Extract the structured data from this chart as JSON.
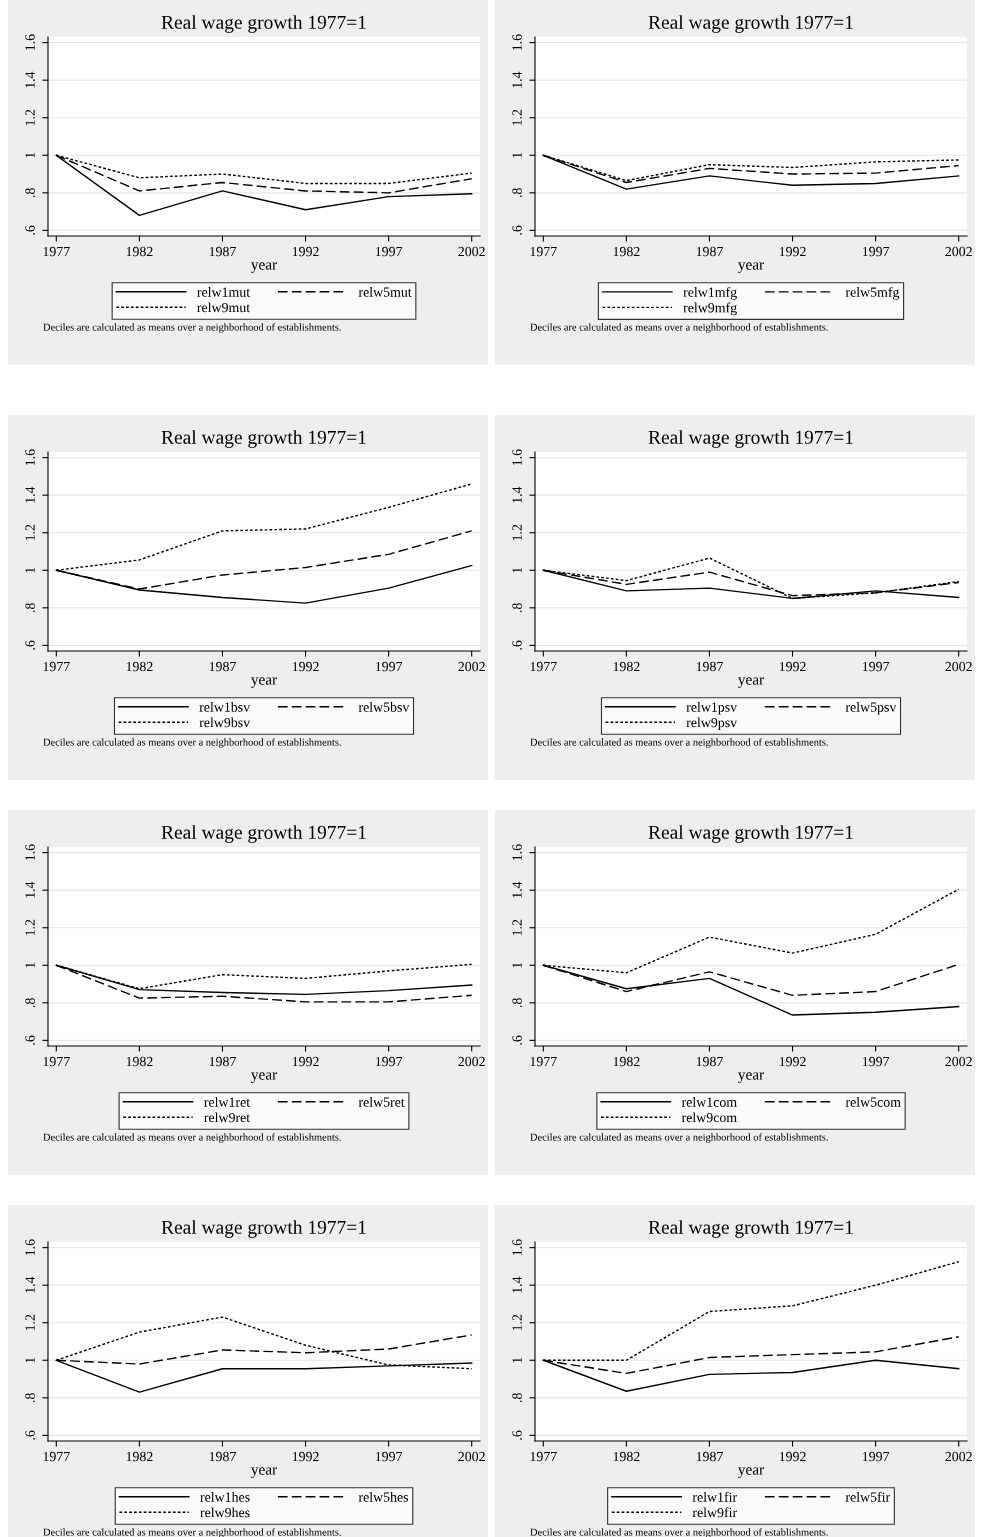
{
  "chart_data": [
    {
      "type": "line",
      "title": "Real wage growth 1977=1",
      "xlabel": "year",
      "x": [
        1977,
        1982,
        1987,
        1992,
        1997,
        2002
      ],
      "xlim": [
        1976.5,
        2002.5
      ],
      "xticks": [
        1977,
        1982,
        1987,
        1992,
        1997,
        2002
      ],
      "ylim": [
        0.57,
        1.63
      ],
      "yticks": [
        {
          "value": 0.6,
          "label": ".6"
        },
        {
          "value": 0.8,
          "label": ".8"
        },
        {
          "value": 1,
          "label": "1"
        },
        {
          "value": 1.2,
          "label": "1.2"
        },
        {
          "value": 1.4,
          "label": "1.4"
        },
        {
          "value": 1.6,
          "label": "1.6"
        }
      ],
      "grid": "y",
      "legend": "bottom",
      "annotations": [
        "Deciles are calculated as means over a neighborhood of establishments."
      ],
      "series": [
        {
          "name": "relw1mut",
          "color": "#000000",
          "line_style": "solid",
          "values": [
            1,
            0.68,
            0.81,
            0.71,
            0.78,
            0.795
          ]
        },
        {
          "name": "relw5mut",
          "color": "#000000",
          "line_style": "dashed",
          "values": [
            1,
            0.81,
            0.855,
            0.81,
            0.8,
            0.875
          ]
        },
        {
          "name": "relw9mut",
          "color": "#000000",
          "line_style": "dotted",
          "values": [
            1,
            0.88,
            0.9,
            0.85,
            0.85,
            0.905
          ]
        }
      ]
    },
    {
      "type": "line",
      "title": "Real wage growth 1977=1",
      "xlabel": "year",
      "x": [
        1977,
        1982,
        1987,
        1992,
        1997,
        2002
      ],
      "xlim": [
        1976.5,
        2002.5
      ],
      "xticks": [
        1977,
        1982,
        1987,
        1992,
        1997,
        2002
      ],
      "ylim": [
        0.57,
        1.63
      ],
      "yticks": [
        {
          "value": 0.6,
          "label": ".6"
        },
        {
          "value": 0.8,
          "label": ".8"
        },
        {
          "value": 1,
          "label": "1"
        },
        {
          "value": 1.2,
          "label": "1.2"
        },
        {
          "value": 1.4,
          "label": "1.4"
        },
        {
          "value": 1.6,
          "label": "1.6"
        }
      ],
      "grid": "y",
      "legend": "bottom",
      "annotations": [
        "Deciles are calculated as means over a neighborhood of establishments."
      ],
      "series": [
        {
          "name": "relw1mfg",
          "color": "#000000",
          "line_style": "solid",
          "values": [
            1,
            0.82,
            0.89,
            0.84,
            0.85,
            0.89
          ]
        },
        {
          "name": "relw5mfg",
          "color": "#000000",
          "line_style": "dashed",
          "values": [
            1,
            0.855,
            0.93,
            0.9,
            0.905,
            0.945
          ]
        },
        {
          "name": "relw9mfg",
          "color": "#000000",
          "line_style": "dotted",
          "values": [
            1,
            0.865,
            0.95,
            0.935,
            0.965,
            0.975
          ]
        }
      ]
    },
    {
      "type": "line",
      "title": "Real wage growth 1977=1",
      "xlabel": "year",
      "x": [
        1977,
        1982,
        1987,
        1992,
        1997,
        2002
      ],
      "xlim": [
        1976.5,
        2002.5
      ],
      "xticks": [
        1977,
        1982,
        1987,
        1992,
        1997,
        2002
      ],
      "ylim": [
        0.57,
        1.63
      ],
      "yticks": [
        {
          "value": 0.6,
          "label": ".6"
        },
        {
          "value": 0.8,
          "label": ".8"
        },
        {
          "value": 1,
          "label": "1"
        },
        {
          "value": 1.2,
          "label": "1.2"
        },
        {
          "value": 1.4,
          "label": "1.4"
        },
        {
          "value": 1.6,
          "label": "1.6"
        }
      ],
      "grid": "y",
      "legend": "bottom",
      "annotations": [
        "Deciles are calculated as means over a neighborhood of establishments."
      ],
      "series": [
        {
          "name": "relw1bsv",
          "color": "#000000",
          "line_style": "solid",
          "values": [
            1,
            0.895,
            0.855,
            0.825,
            0.905,
            1.025
          ]
        },
        {
          "name": "relw5bsv",
          "color": "#000000",
          "line_style": "dashed",
          "values": [
            1,
            0.9,
            0.975,
            1.015,
            1.085,
            1.21
          ]
        },
        {
          "name": "relw9bsv",
          "color": "#000000",
          "line_style": "dotted",
          "values": [
            1,
            1.055,
            1.21,
            1.22,
            1.335,
            1.46
          ]
        }
      ]
    },
    {
      "type": "line",
      "title": "Real wage growth 1977=1",
      "xlabel": "year",
      "x": [
        1977,
        1982,
        1987,
        1992,
        1997,
        2002
      ],
      "xlim": [
        1976.5,
        2002.5
      ],
      "xticks": [
        1977,
        1982,
        1987,
        1992,
        1997,
        2002
      ],
      "ylim": [
        0.57,
        1.63
      ],
      "yticks": [
        {
          "value": 0.6,
          "label": ".6"
        },
        {
          "value": 0.8,
          "label": ".8"
        },
        {
          "value": 1,
          "label": "1"
        },
        {
          "value": 1.2,
          "label": "1.2"
        },
        {
          "value": 1.4,
          "label": "1.4"
        },
        {
          "value": 1.6,
          "label": "1.6"
        }
      ],
      "grid": "y",
      "legend": "bottom",
      "annotations": [
        "Deciles are calculated as means over a neighborhood of establishments."
      ],
      "series": [
        {
          "name": "relw1psv",
          "color": "#000000",
          "line_style": "solid",
          "values": [
            1,
            0.89,
            0.905,
            0.85,
            0.89,
            0.855
          ]
        },
        {
          "name": "relw5psv",
          "color": "#000000",
          "line_style": "dashed",
          "values": [
            1,
            0.925,
            0.99,
            0.865,
            0.88,
            0.935
          ]
        },
        {
          "name": "relw9psv",
          "color": "#000000",
          "line_style": "dotted",
          "values": [
            1,
            0.945,
            1.065,
            0.85,
            0.88,
            0.94
          ]
        }
      ]
    },
    {
      "type": "line",
      "title": "Real wage growth 1977=1",
      "xlabel": "year",
      "x": [
        1977,
        1982,
        1987,
        1992,
        1997,
        2002
      ],
      "xlim": [
        1976.5,
        2002.5
      ],
      "xticks": [
        1977,
        1982,
        1987,
        1992,
        1997,
        2002
      ],
      "ylim": [
        0.57,
        1.63
      ],
      "yticks": [
        {
          "value": 0.6,
          "label": ".6"
        },
        {
          "value": 0.8,
          "label": ".8"
        },
        {
          "value": 1,
          "label": "1"
        },
        {
          "value": 1.2,
          "label": "1.2"
        },
        {
          "value": 1.4,
          "label": "1.4"
        },
        {
          "value": 1.6,
          "label": "1.6"
        }
      ],
      "grid": "y",
      "legend": "bottom",
      "annotations": [
        "Deciles are calculated as means over a neighborhood of establishments."
      ],
      "series": [
        {
          "name": "relw1ret",
          "color": "#000000",
          "line_style": "solid",
          "values": [
            1,
            0.87,
            0.855,
            0.845,
            0.865,
            0.895
          ]
        },
        {
          "name": "relw5ret",
          "color": "#000000",
          "line_style": "dashed",
          "values": [
            1,
            0.825,
            0.835,
            0.805,
            0.805,
            0.84
          ]
        },
        {
          "name": "relw9ret",
          "color": "#000000",
          "line_style": "dotted",
          "values": [
            1,
            0.875,
            0.95,
            0.93,
            0.97,
            1.005
          ]
        }
      ]
    },
    {
      "type": "line",
      "title": "Real wage growth 1977=1",
      "xlabel": "year",
      "x": [
        1977,
        1982,
        1987,
        1992,
        1997,
        2002
      ],
      "xlim": [
        1976.5,
        2002.5
      ],
      "xticks": [
        1977,
        1982,
        1987,
        1992,
        1997,
        2002
      ],
      "ylim": [
        0.57,
        1.63
      ],
      "yticks": [
        {
          "value": 0.6,
          "label": ".6"
        },
        {
          "value": 0.8,
          "label": ".8"
        },
        {
          "value": 1,
          "label": "1"
        },
        {
          "value": 1.2,
          "label": "1.2"
        },
        {
          "value": 1.4,
          "label": "1.4"
        },
        {
          "value": 1.6,
          "label": "1.6"
        }
      ],
      "grid": "y",
      "legend": "bottom",
      "annotations": [
        "Deciles are calculated as means over a neighborhood of establishments."
      ],
      "series": [
        {
          "name": "relw1com",
          "color": "#000000",
          "line_style": "solid",
          "values": [
            1,
            0.875,
            0.93,
            0.735,
            0.75,
            0.78
          ]
        },
        {
          "name": "relw5com",
          "color": "#000000",
          "line_style": "dashed",
          "values": [
            1,
            0.86,
            0.965,
            0.84,
            0.86,
            1.005
          ]
        },
        {
          "name": "relw9com",
          "color": "#000000",
          "line_style": "dotted",
          "values": [
            1,
            0.96,
            1.15,
            1.065,
            1.165,
            1.405
          ]
        }
      ]
    },
    {
      "type": "line",
      "title": "Real wage growth 1977=1",
      "xlabel": "year",
      "x": [
        1977,
        1982,
        1987,
        1992,
        1997,
        2002
      ],
      "xlim": [
        1976.5,
        2002.5
      ],
      "xticks": [
        1977,
        1982,
        1987,
        1992,
        1997,
        2002
      ],
      "ylim": [
        0.57,
        1.63
      ],
      "yticks": [
        {
          "value": 0.6,
          "label": ".6"
        },
        {
          "value": 0.8,
          "label": ".8"
        },
        {
          "value": 1,
          "label": "1"
        },
        {
          "value": 1.2,
          "label": "1.2"
        },
        {
          "value": 1.4,
          "label": "1.4"
        },
        {
          "value": 1.6,
          "label": "1.6"
        }
      ],
      "grid": "y",
      "legend": "bottom",
      "annotations": [
        "Deciles are calculated as means over a neighborhood of establishments."
      ],
      "series": [
        {
          "name": "relw1hes",
          "color": "#000000",
          "line_style": "solid",
          "values": [
            1,
            0.83,
            0.955,
            0.955,
            0.97,
            0.985
          ]
        },
        {
          "name": "relw5hes",
          "color": "#000000",
          "line_style": "dashed",
          "values": [
            1,
            0.98,
            1.055,
            1.04,
            1.06,
            1.135
          ]
        },
        {
          "name": "relw9hes",
          "color": "#000000",
          "line_style": "dotted",
          "values": [
            1,
            1.15,
            1.23,
            1.08,
            0.975,
            0.955
          ]
        }
      ]
    },
    {
      "type": "line",
      "title": "Real wage growth 1977=1",
      "xlabel": "year",
      "x": [
        1977,
        1982,
        1987,
        1992,
        1997,
        2002
      ],
      "xlim": [
        1976.5,
        2002.5
      ],
      "xticks": [
        1977,
        1982,
        1987,
        1992,
        1997,
        2002
      ],
      "ylim": [
        0.57,
        1.63
      ],
      "yticks": [
        {
          "value": 0.6,
          "label": ".6"
        },
        {
          "value": 0.8,
          "label": ".8"
        },
        {
          "value": 1,
          "label": "1"
        },
        {
          "value": 1.2,
          "label": "1.2"
        },
        {
          "value": 1.4,
          "label": "1.4"
        },
        {
          "value": 1.6,
          "label": "1.6"
        }
      ],
      "grid": "y",
      "legend": "bottom",
      "annotations": [
        "Deciles are calculated as means over a neighborhood of establishments."
      ],
      "series": [
        {
          "name": "relw1fir",
          "color": "#000000",
          "line_style": "solid",
          "values": [
            1,
            0.835,
            0.925,
            0.935,
            1.0,
            0.955
          ]
        },
        {
          "name": "relw5fir",
          "color": "#000000",
          "line_style": "dashed",
          "values": [
            1,
            0.93,
            1.015,
            1.03,
            1.045,
            1.125
          ]
        },
        {
          "name": "relw9fir",
          "color": "#000000",
          "line_style": "dotted",
          "values": [
            1,
            1.0,
            1.26,
            1.29,
            1.4,
            1.525
          ]
        }
      ]
    }
  ]
}
